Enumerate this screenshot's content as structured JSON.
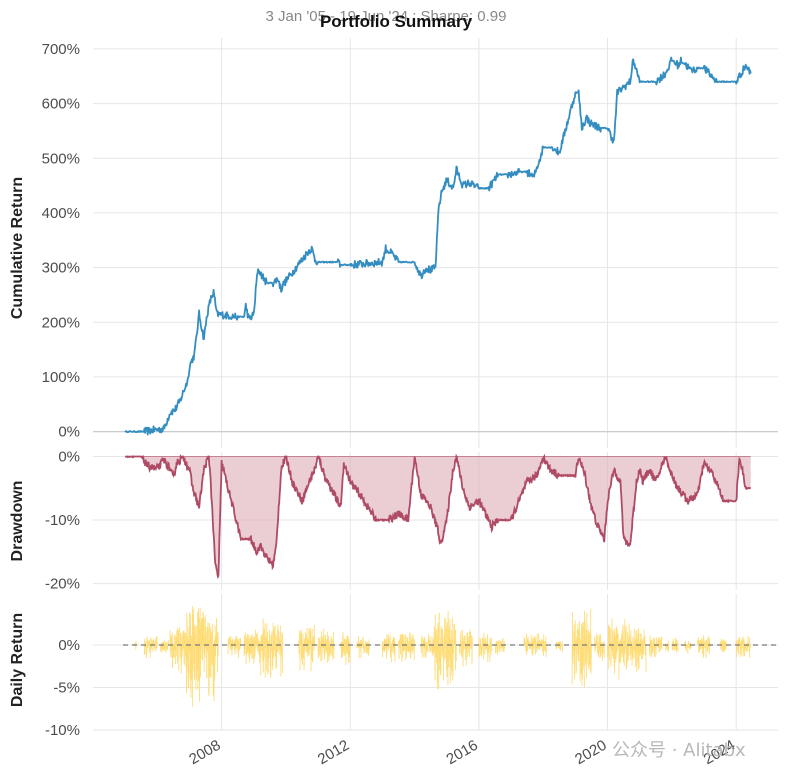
{
  "title": "Portfolio Summary",
  "subtitle": "3 Jan '05 - 19 Jun '24 ; Sharpe: 0.99",
  "watermark": "公众号 · Alitabx",
  "colors": {
    "cumulative": "#348dc1",
    "drawdown_line": "#af4b64",
    "drawdown_fill": "#dba5b1",
    "daily": "#fedd78",
    "zero_line": "#777777",
    "grid": "#e6e6e6"
  },
  "chart_data": [
    {
      "id": "cumulative",
      "type": "line",
      "ylabel": "Cumulative Return",
      "ylim": [
        -30,
        720
      ],
      "yticks": [
        0,
        100,
        200,
        300,
        400,
        500,
        600,
        700
      ],
      "ytick_labels": [
        "0%",
        "100%",
        "200%",
        "300%",
        "400%",
        "500%",
        "600%",
        "700%"
      ],
      "x": [
        2005.0,
        2005.6,
        2005.9,
        2006.2,
        2006.4,
        2006.55,
        2006.7,
        2006.95,
        2007.0,
        2007.15,
        2007.3,
        2007.45,
        2007.55,
        2007.65,
        2007.75,
        2007.85,
        2008.5,
        2008.7,
        2008.75,
        2008.85,
        2009.0,
        2009.1,
        2009.15,
        2009.4,
        2009.6,
        2009.75,
        2009.85,
        2009.9,
        2010.7,
        2010.8,
        2010.9,
        2011.0,
        2011.6,
        2011.7,
        2012.0,
        2013.0,
        2013.1,
        2013.3,
        2013.5,
        2014.0,
        2014.2,
        2014.35,
        2014.5,
        2014.65,
        2014.75,
        2014.85,
        2015.0,
        2015.2,
        2015.3,
        2015.5,
        2015.7,
        2016.0,
        2016.1,
        2016.3,
        2016.6,
        2016.9,
        2017.3,
        2017.5,
        2017.7,
        2017.9,
        2018.0,
        2018.2,
        2018.3,
        2018.5,
        2019.0,
        2019.1,
        2019.2,
        2019.35,
        2019.45,
        2019.6,
        2019.8,
        2020.0,
        2020.2,
        2020.3,
        2020.5,
        2020.7,
        2020.8,
        2020.9,
        2021.0,
        2021.2,
        2021.5,
        2021.8,
        2022.0,
        2022.2,
        2022.3,
        2022.6,
        2022.8,
        2023.0,
        2023.4,
        2023.8,
        2024.0,
        2024.3,
        2024.45
      ],
      "values": [
        0,
        0,
        3,
        5,
        35,
        40,
        55,
        95,
        120,
        140,
        215,
        170,
        215,
        240,
        255,
        215,
        210,
        210,
        230,
        205,
        215,
        285,
        295,
        272,
        272,
        280,
        260,
        268,
        330,
        335,
        315,
        310,
        310,
        305,
        305,
        310,
        335,
        325,
        310,
        310,
        285,
        300,
        295,
        300,
        410,
        440,
        460,
        445,
        480,
        450,
        455,
        445,
        445,
        445,
        470,
        470,
        475,
        475,
        465,
        500,
        520,
        520,
        520,
        510,
        620,
        620,
        555,
        575,
        565,
        560,
        555,
        555,
        530,
        620,
        630,
        640,
        680,
        660,
        640,
        640,
        640,
        655,
        680,
        670,
        680,
        660,
        665,
        665,
        640,
        640,
        640,
        670,
        655
      ]
    },
    {
      "id": "drawdown",
      "type": "area",
      "ylabel": "Drawdown",
      "ylim": [
        -21,
        0.7
      ],
      "yticks": [
        0,
        -10,
        -20
      ],
      "ytick_labels": [
        "0%",
        "-10%",
        "-20%"
      ],
      "x": [
        2005.0,
        2005.3,
        2005.5,
        2005.7,
        2006.0,
        2006.2,
        2006.4,
        2006.5,
        2006.6,
        2006.8,
        2007.0,
        2007.1,
        2007.3,
        2007.45,
        2007.6,
        2007.65,
        2007.8,
        2007.9,
        2008.0,
        2008.1,
        2008.2,
        2008.6,
        2008.9,
        2009.0,
        2009.1,
        2009.2,
        2009.4,
        2009.6,
        2009.7,
        2009.85,
        2010.0,
        2010.2,
        2010.5,
        2010.8,
        2010.9,
        2011.0,
        2011.2,
        2011.4,
        2011.7,
        2011.8,
        2012.0,
        2012.3,
        2012.8,
        2013.0,
        2013.2,
        2013.5,
        2013.8,
        2014.0,
        2014.2,
        2014.5,
        2014.75,
        2014.8,
        2015.0,
        2015.2,
        2015.3,
        2015.5,
        2015.7,
        2016.0,
        2016.2,
        2016.4,
        2016.6,
        2016.8,
        2017.0,
        2017.5,
        2017.8,
        2018.0,
        2018.2,
        2018.5,
        2019.0,
        2019.1,
        2019.3,
        2019.5,
        2019.7,
        2019.9,
        2020.0,
        2020.2,
        2020.4,
        2020.5,
        2020.7,
        2020.9,
        2021.0,
        2021.1,
        2021.3,
        2021.5,
        2021.8,
        2022.0,
        2022.2,
        2022.5,
        2022.8,
        2023.0,
        2023.3,
        2023.6,
        2024.0,
        2024.1,
        2024.3,
        2024.45
      ],
      "values": [
        0,
        0,
        0,
        -1.5,
        -2,
        -0.5,
        -2,
        -3.5,
        -1,
        0,
        -2,
        -5,
        -8,
        -2,
        0,
        -3,
        -17,
        -19,
        -1,
        -3,
        -5,
        -13,
        -13,
        -14,
        -15,
        -14,
        -16,
        -17,
        -14,
        -2,
        0,
        -4,
        -7,
        -3,
        -2,
        0,
        -3,
        -5,
        -8,
        -1,
        -4,
        -6,
        -10,
        -10,
        -10,
        -9,
        -10,
        0,
        -6,
        -8,
        -12,
        -14,
        -10,
        -2,
        0,
        -5,
        -8,
        -7,
        -9,
        -11,
        -10,
        -10,
        -10,
        -4,
        -3,
        0,
        -2,
        -3,
        -3,
        0,
        -3,
        -8,
        -11,
        -13,
        -7,
        -2,
        -4,
        -13,
        -14,
        -4,
        -2,
        -4,
        -2,
        -4,
        0,
        -3,
        -5,
        -7,
        -6,
        -1,
        -3,
        -7,
        -7,
        0,
        -5,
        -5
      ]
    },
    {
      "id": "daily",
      "type": "bar",
      "ylabel": "Daily Return",
      "ylim": [
        -10,
        6
      ],
      "yticks": [
        0,
        -5,
        -10
      ],
      "ytick_labels": [
        "0%",
        "-5%",
        "-10%"
      ],
      "bursts": [
        {
          "start": 2005.3,
          "end": 2005.35,
          "amp": 0.6
        },
        {
          "start": 2005.6,
          "end": 2006.0,
          "amp": 1.2
        },
        {
          "start": 2006.1,
          "end": 2006.35,
          "amp": 1.0
        },
        {
          "start": 2006.4,
          "end": 2006.9,
          "amp": 3.0
        },
        {
          "start": 2006.9,
          "end": 2007.9,
          "amp": 5.5
        },
        {
          "start": 2008.2,
          "end": 2008.6,
          "amp": 1.3
        },
        {
          "start": 2008.7,
          "end": 2009.2,
          "amp": 2.2
        },
        {
          "start": 2009.2,
          "end": 2009.9,
          "amp": 3.2
        },
        {
          "start": 2010.4,
          "end": 2010.9,
          "amp": 2.5
        },
        {
          "start": 2011.0,
          "end": 2011.5,
          "amp": 2.0
        },
        {
          "start": 2011.7,
          "end": 2012.0,
          "amp": 2.2
        },
        {
          "start": 2012.2,
          "end": 2012.6,
          "amp": 1.2
        },
        {
          "start": 2013.0,
          "end": 2013.4,
          "amp": 1.6
        },
        {
          "start": 2013.5,
          "end": 2014.0,
          "amp": 1.8
        },
        {
          "start": 2014.2,
          "end": 2014.6,
          "amp": 1.5
        },
        {
          "start": 2014.6,
          "end": 2015.3,
          "amp": 4.8
        },
        {
          "start": 2015.4,
          "end": 2015.8,
          "amp": 2.2
        },
        {
          "start": 2016.0,
          "end": 2016.4,
          "amp": 1.6
        },
        {
          "start": 2016.5,
          "end": 2016.8,
          "amp": 1.0
        },
        {
          "start": 2017.4,
          "end": 2018.1,
          "amp": 1.5
        },
        {
          "start": 2018.4,
          "end": 2018.6,
          "amp": 0.8
        },
        {
          "start": 2018.9,
          "end": 2019.5,
          "amp": 4.5
        },
        {
          "start": 2019.6,
          "end": 2019.9,
          "amp": 1.5
        },
        {
          "start": 2020.0,
          "end": 2020.6,
          "amp": 3.5
        },
        {
          "start": 2020.6,
          "end": 2021.2,
          "amp": 2.5
        },
        {
          "start": 2021.3,
          "end": 2021.7,
          "amp": 1.3
        },
        {
          "start": 2021.8,
          "end": 2021.9,
          "amp": 0.8
        },
        {
          "start": 2022.0,
          "end": 2022.2,
          "amp": 1.0
        },
        {
          "start": 2022.4,
          "end": 2022.6,
          "amp": 0.8
        },
        {
          "start": 2022.8,
          "end": 2023.2,
          "amp": 1.3
        },
        {
          "start": 2023.5,
          "end": 2023.7,
          "amp": 0.9
        },
        {
          "start": 2024.0,
          "end": 2024.45,
          "amp": 1.4
        }
      ]
    }
  ],
  "x_axis": {
    "xlim": [
      2004.0,
      2025.3
    ],
    "ticks": [
      2008,
      2012,
      2016,
      2020,
      2024
    ],
    "tick_labels": [
      "2008",
      "2012",
      "2016",
      "2020",
      "2024"
    ]
  }
}
